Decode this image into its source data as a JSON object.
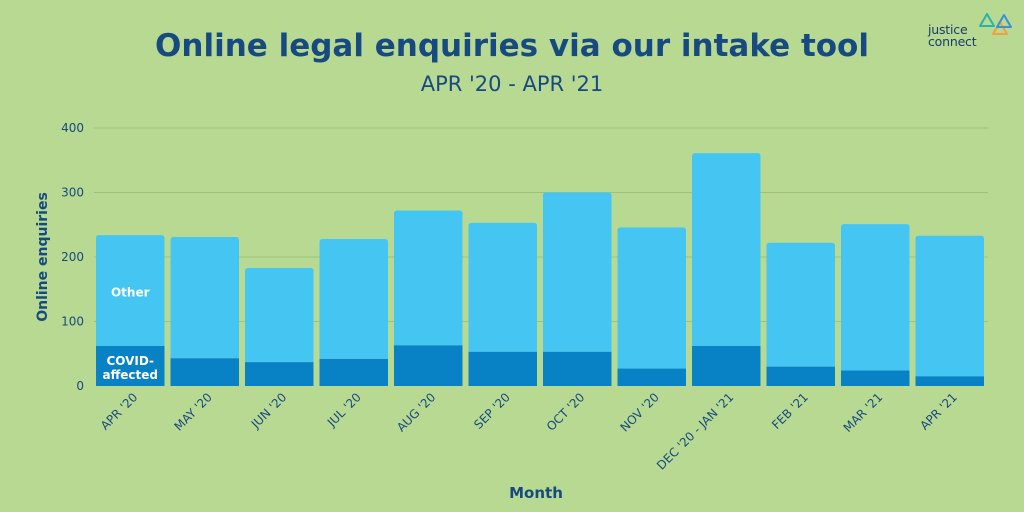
{
  "brand": {
    "line1": "justice",
    "line2": "connect",
    "colors": [
      "#2bb3a8",
      "#f2a03d",
      "#3d8fd6"
    ]
  },
  "chart_data": {
    "type": "bar",
    "stacked": true,
    "title": "Online legal enquiries via our intake tool",
    "subtitle": "APR '20 - APR '21",
    "xlabel": "Month",
    "ylabel": "Online enquiries",
    "ylim": [
      0,
      400
    ],
    "yticks": [
      0,
      100,
      200,
      300,
      400
    ],
    "grid": true,
    "categories": [
      "APR '20",
      "MAY '20",
      "JUN '20",
      "JUL '20",
      "AUG '20",
      "SEP '20",
      "OCT '20",
      "NOV '20",
      "DEC '20 - JAN '21",
      "FEB '21",
      "MAR '21",
      "APR '21"
    ],
    "series": [
      {
        "name": "COVID-affected",
        "label_lines": [
          "COVID-",
          "affected"
        ],
        "color": "#0882c4",
        "values": [
          62,
          43,
          37,
          42,
          63,
          53,
          53,
          27,
          62,
          30,
          24,
          15
        ]
      },
      {
        "name": "Other",
        "label_lines": [
          "Other"
        ],
        "color": "#45c6f2",
        "values": [
          172,
          188,
          146,
          186,
          209,
          200,
          247,
          219,
          299,
          192,
          227,
          218
        ]
      }
    ],
    "colors": {
      "background": "#b8d992",
      "text": "#174a80",
      "grid": "#9ec27a",
      "inbar_label": "#ffffff"
    }
  }
}
